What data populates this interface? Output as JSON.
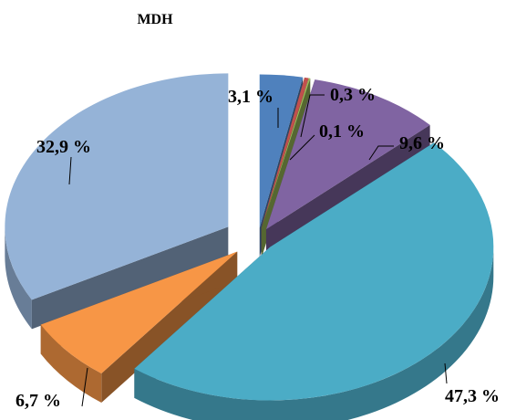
{
  "chart_data": {
    "type": "pie",
    "title": "MDH",
    "categories": [
      "",
      "",
      "",
      "",
      "",
      "",
      ""
    ],
    "values": [
      3.1,
      0.3,
      0.1,
      9.6,
      47.3,
      6.7,
      32.9
    ],
    "labels": [
      "3,1 %",
      "0,3 %",
      "0,1 %",
      "9,6 %",
      "47,3 %",
      "6,7 %",
      "32,9 %"
    ],
    "colors": [
      "#4f81bd",
      "#c0504d",
      "#9bbb59",
      "#8064a2",
      "#4bacc6",
      "#f79646",
      "#95b3d7"
    ],
    "exploded": true,
    "three_d": true,
    "legend": "none"
  }
}
